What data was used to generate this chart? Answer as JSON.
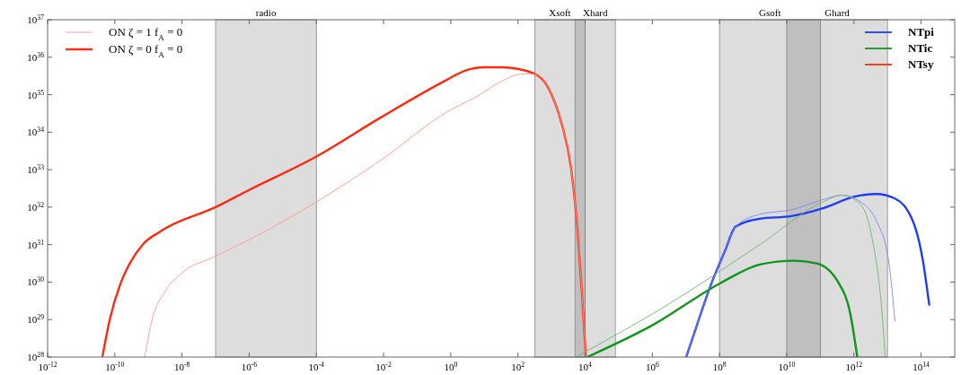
{
  "chart_data": {
    "type": "line",
    "log": "xy",
    "grid": false,
    "legend": "top right",
    "xlim": [
      1e-12,
      1000000000000000.0
    ],
    "ylim": [
      1e+28,
      1e+37
    ],
    "xticks": [
      {
        "value": 1e-12,
        "label": "10$^{-12}$"
      },
      {
        "value": 1e-10,
        "label": "10$^{-10}$"
      },
      {
        "value": 1e-08,
        "label": "10$^{-8}$"
      },
      {
        "value": 1e-06,
        "label": "10$^{-6}$"
      },
      {
        "value": 0.0001,
        "label": "10$^{-4}$"
      },
      {
        "value": 0.01,
        "label": "10$^{-2}$"
      },
      {
        "value": 1,
        "label": "10$^{0}$"
      },
      {
        "value": 100,
        "label": "10$^{2}$"
      },
      {
        "value": 10000.0,
        "label": "10$^{4}$"
      },
      {
        "value": 1000000.0,
        "label": "10$^{6}$"
      },
      {
        "value": 100000000.0,
        "label": "10$^{8}$"
      },
      {
        "value": 10000000000.0,
        "label": "10$^{10}$"
      },
      {
        "value": 1000000000000.0,
        "label": "10$^{12}$"
      },
      {
        "value": 100000000000000.0,
        "label": "10$^{14}$"
      }
    ],
    "yticks": [
      {
        "value": 1e+28,
        "label": "10$^{28}$"
      },
      {
        "value": 1e+29,
        "label": "10$^{29}$"
      },
      {
        "value": 1e+30,
        "label": "10$^{30}$"
      },
      {
        "value": 1e+31,
        "label": "10$^{31}$"
      },
      {
        "value": 1e+32,
        "label": "10$^{32}$"
      },
      {
        "value": 1e+33,
        "label": "10$^{33}$"
      },
      {
        "value": 1e+34,
        "label": "10$^{34}$"
      },
      {
        "value": 1e+35,
        "label": "10$^{35}$"
      },
      {
        "value": 1e+36,
        "label": "10$^{36}$"
      },
      {
        "value": 1e+37,
        "label": "10$^{37}$"
      }
    ],
    "bands": [
      {
        "axis": "x",
        "from": 1e-07,
        "to": 0.0001,
        "label": "radio"
      },
      {
        "axis": "x",
        "from": 316,
        "to": 10000,
        "label": "Xsoft"
      },
      {
        "axis": "x",
        "from": 5000,
        "to": 79400,
        "label": "Xhard"
      },
      {
        "axis": "x",
        "from": 100000000.0,
        "to": 100000000000.0,
        "label": "Gsoft"
      },
      {
        "axis": "x",
        "from": 10000000000.0,
        "to": 10000000000000.0,
        "label": "Ghard"
      }
    ],
    "annotations": [
      "ON  ζ = 1  f$_{A}$ = 0",
      "ON  ζ = 0  f$_{A}$ = 0"
    ],
    "series": [
      {
        "name": "NTpi",
        "color": "#1f3df5",
        "x": [
          10200000.0,
          21400000.0,
          51300000.0,
          145000000.0,
          302000000.0,
          1580000000.0,
          13800000000.0,
          120000000000.0,
          1050000000000.0,
          4570000000000.0,
          16600000000000.0,
          60300000000000.0,
          112000000000000.0,
          174000000000000.0
        ],
        "values": [
          1e+28,
          7.24e+28,
          7.08e+29,
          6.76e+30,
          3.02e+31,
          4.9e+31,
          5.75e+31,
          9.33e+31,
          1.91e+32,
          2.24e+32,
          1.7e+32,
          3.72e+31,
          3.89e+30,
          2.51e+29
        ]
      },
      {
        "name": "NTic",
        "color": "#11941b",
        "x": [
          11500.0,
          1050000.0,
          120000000.0,
          1580000000.0,
          16600000000.0,
          77600000000.0,
          339000000000.0,
          794000000000.0,
          1260000000000.0
        ],
        "values": [
          1e+28,
          7.24e+28,
          1e+30,
          2.95e+30,
          3.72e+30,
          3.16e+30,
          1e+30,
          1.32e+29,
          1e+28
        ]
      },
      {
        "name": "NTsy",
        "color": "#ff2a10",
        "x": [
          4.27e-11,
          7.08e-11,
          1.48e-10,
          2.88e-10,
          6.76e-10,
          2.34e-09,
          1e-07,
          1e-06,
          0.0001,
          0.00851,
          0.776,
          2.63,
          9.77,
          33.1,
          288,
          813,
          1950,
          3800,
          5890,
          7940,
          10500
        ],
        "values": [
          1e+28,
          1e+29,
          9.12e+29,
          3.31e+30,
          1e+31,
          2.29e+31,
          1e+32,
          2.88e+32,
          2.24e+33,
          2.51e+34,
          2.51e+35,
          4.37e+35,
          5.37e+35,
          5.37e+35,
          3.72e+35,
          1.48e+35,
          1.82e+34,
          1.12e+33,
          2.57e+31,
          6.03e+29,
          1e+28
        ]
      },
      {
        "color": "#ff9a8a",
        "x": [
          7.76e-10,
          1.29e-09,
          3.02e-09,
          8.71e-09,
          1e-07,
          1e-06,
          0.0001,
          0.00851,
          0.776,
          5.89,
          33.1,
          120,
          288,
          813,
          1950,
          3800,
          5890,
          7940,
          10500
        ],
        "values": [
          1e+28,
          1e+29,
          5.37e+29,
          1.58e+30,
          4.9e+30,
          1.35e+31,
          1.38e+32,
          1.82e+33,
          3.47e+34,
          8.91e+34,
          2.29e+35,
          3.55e+35,
          3.55e+35,
          1.48e+35,
          1.82e+34,
          1.12e+33,
          2.57e+31,
          6.03e+29,
          1e+28
        ]
      },
      {
        "color": "#7b86f0",
        "x": [
          10200000.0,
          21400000.0,
          51300000.0,
          145000000.0,
          302000000.0,
          1580000000.0,
          13800000000.0,
          120000000000.0,
          437000000000.0,
          1580000000000.0,
          4570000000000.0,
          10700000000000.0,
          16600000000000.0
        ],
        "values": [
          1e+28,
          7.24e+28,
          7.08e+29,
          6.76e+30,
          3.02e+31,
          6.46e+31,
          8.51e+31,
          1.58e+32,
          2.09e+32,
          1.38e+32,
          4.47e+31,
          3.89e+30,
          9.12e+28
        ]
      },
      {
        "color": "#6fb86f",
        "x": [
          5250,
          2450000.0,
          1580000000.0,
          120000000000.0,
          437000000000.0,
          1580000000000.0,
          3800000000000.0,
          6610000000000.0,
          8510000000000.0
        ],
        "values": [
          1e+28,
          2.29e+29,
          1e+31,
          1.38e+32,
          2.09e+32,
          1.17e+32,
          9.77e+30,
          2.29e+29,
          1e+28
        ]
      }
    ]
  }
}
